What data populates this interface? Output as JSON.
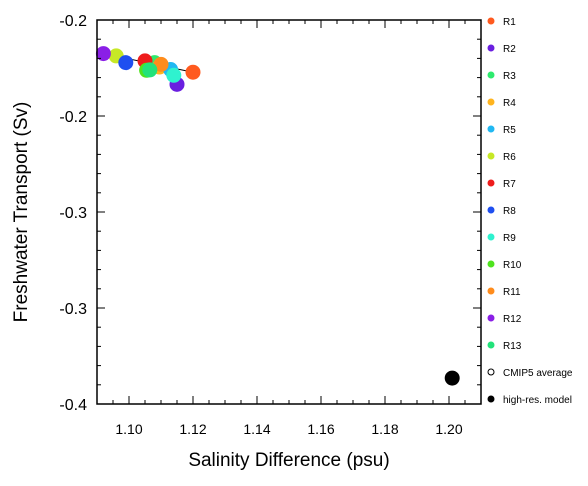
{
  "chart_data": {
    "type": "scatter",
    "xlabel": "Salinity Difference (psu)",
    "ylabel": "Freshwater Transport (Sv)",
    "xlim": [
      1.09,
      1.21
    ],
    "ylim": [
      -0.4,
      -0.2
    ],
    "xticks": [
      1.1,
      1.12,
      1.14,
      1.16,
      1.18,
      1.2
    ],
    "xtick_labels": [
      "1.10",
      "1.12",
      "1.14",
      "1.16",
      "1.18",
      "1.20"
    ],
    "yticks": [
      -0.2,
      -0.25,
      -0.3,
      -0.35,
      -0.4
    ],
    "ytick_labels": [
      "-0.2",
      "-0.2",
      "-0.3",
      "-0.3",
      "-0.4"
    ],
    "legend_position": "right",
    "series": [
      {
        "name": "R1",
        "color": "#ff5a1f",
        "marker": "filled-circle",
        "x": 1.12,
        "y": -0.2272
      },
      {
        "name": "R2",
        "color": "#6a1fe0",
        "marker": "filled-circle",
        "x": 1.115,
        "y": -0.2335
      },
      {
        "name": "R3",
        "color": "#2eea6e",
        "marker": "filled-circle",
        "x": 1.108,
        "y": -0.2222
      },
      {
        "name": "R4",
        "color": "#ffb41e",
        "marker": "filled-circle",
        "x": 1.1095,
        "y": -0.2245
      },
      {
        "name": "R5",
        "color": "#21b8f2",
        "marker": "filled-circle",
        "x": 1.113,
        "y": -0.2258
      },
      {
        "name": "R6",
        "color": "#c7e826",
        "marker": "filled-circle",
        "x": 1.096,
        "y": -0.2187
      },
      {
        "name": "R7",
        "color": "#ee1c1c",
        "marker": "filled-circle",
        "x": 1.105,
        "y": -0.2213
      },
      {
        "name": "R8",
        "color": "#1f4ff0",
        "marker": "filled-circle",
        "x": 1.099,
        "y": -0.2222
      },
      {
        "name": "R9",
        "color": "#2ff2cf",
        "marker": "filled-circle",
        "x": 1.114,
        "y": -0.2288
      },
      {
        "name": "R10",
        "color": "#4fe31e",
        "marker": "filled-circle",
        "x": 1.1055,
        "y": -0.2262
      },
      {
        "name": "R11",
        "color": "#ff8c1c",
        "marker": "filled-circle",
        "x": 1.11,
        "y": -0.2231
      },
      {
        "name": "R12",
        "color": "#8a1fe6",
        "marker": "filled-circle",
        "x": 1.092,
        "y": -0.2175
      },
      {
        "name": "R13",
        "color": "#22e27a",
        "marker": "filled-circle",
        "x": 1.1065,
        "y": -0.226
      },
      {
        "name": "CMIP5 average",
        "color": "#000000",
        "marker": "open-circle",
        "x": null,
        "y": null
      },
      {
        "name": "high-res. model",
        "color": "#000000",
        "marker": "filled-circle",
        "x": 1.201,
        "y": -0.3865
      }
    ],
    "connector_line": {
      "color": "#000000",
      "from": [
        1.092,
        -0.2175
      ],
      "to": [
        1.12,
        -0.2272
      ]
    }
  }
}
